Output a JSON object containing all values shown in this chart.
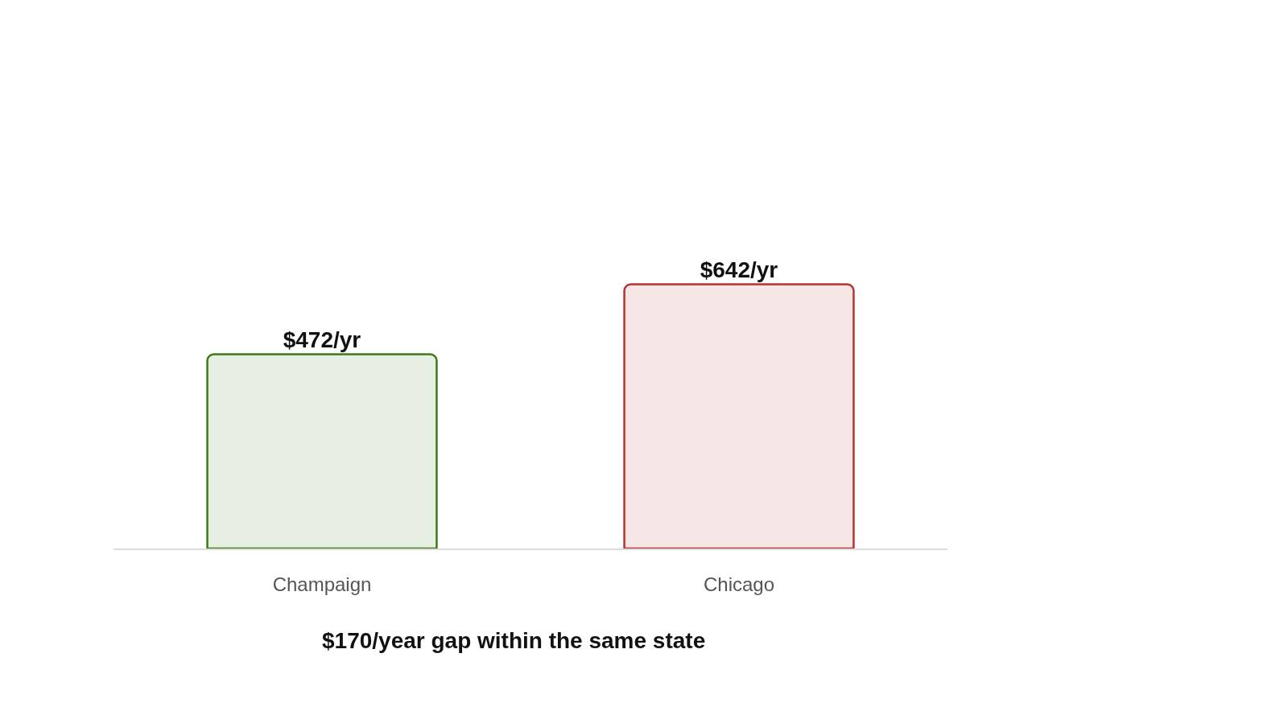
{
  "chart_data": {
    "type": "bar",
    "categories": [
      "Champaign",
      "Chicago"
    ],
    "values": [
      472,
      642
    ],
    "value_labels": [
      "$472/yr",
      "$642/yr"
    ],
    "colors": [
      "#3d7a17",
      "#b8322f"
    ],
    "annotations": [
      "$170/year gap within the same state"
    ]
  }
}
